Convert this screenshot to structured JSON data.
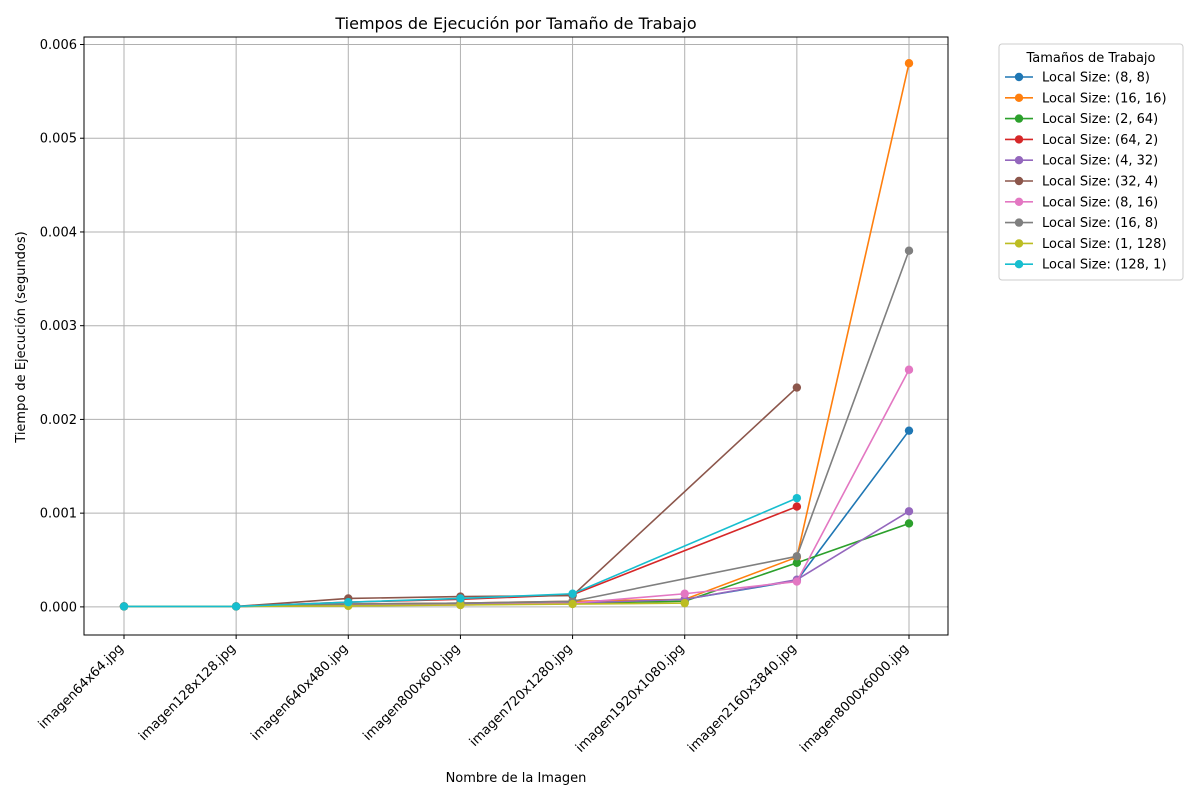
{
  "chart_data": {
    "type": "line",
    "title": "Tiempos de Ejecución por Tamaño de Trabajo",
    "xlabel": "Nombre de la Imagen",
    "ylabel": "Tiempo de Ejecución (segundos)",
    "categories": [
      "imagen64x64.jpg",
      "imagen128x128.jpg",
      "imagen640x480.jpg",
      "imagen800x600.jpg",
      "imagen720x1280.jpg",
      "imagen1920x1080.jpg",
      "imagen2160x3840.jpg",
      "imagen8000x6000.jpg"
    ],
    "ylim": [
      -0.0003,
      0.00608
    ],
    "yticks": [
      0.0,
      0.001,
      0.002,
      0.003,
      0.004,
      0.005,
      0.006
    ],
    "ytick_labels": [
      "0.000",
      "0.001",
      "0.002",
      "0.003",
      "0.004",
      "0.005",
      "0.006"
    ],
    "grid": true,
    "legend": {
      "title": "Tamaños de Trabajo",
      "placement": "outside-top-right"
    },
    "series": [
      {
        "name": "Local Size: (8, 8)",
        "color": "#1f77b4",
        "values": [
          5e-06,
          5e-06,
          3e-05,
          4e-05,
          5e-05,
          8e-05,
          0.00028,
          0.00188
        ]
      },
      {
        "name": "Local Size: (16, 16)",
        "color": "#ff7f0e",
        "values": [
          5e-06,
          5e-06,
          3e-05,
          4e-05,
          6e-05,
          8e-05,
          0.00053,
          0.0058
        ]
      },
      {
        "name": "Local Size: (2, 64)",
        "color": "#2ca02c",
        "values": [
          5e-06,
          5e-06,
          2e-05,
          3e-05,
          4e-05,
          6e-05,
          0.00047,
          0.00089
        ]
      },
      {
        "name": "Local Size: (64, 2)",
        "color": "#d62728",
        "values": [
          5e-06,
          5e-06,
          5e-05,
          8e-05,
          0.00013,
          null,
          0.00107,
          null
        ]
      },
      {
        "name": "Local Size: (4, 32)",
        "color": "#9467bd",
        "values": [
          5e-06,
          5e-06,
          2e-05,
          3e-05,
          4e-05,
          8e-05,
          0.00029,
          0.00102
        ]
      },
      {
        "name": "Local Size: (32, 4)",
        "color": "#8c564b",
        "values": [
          5e-06,
          5e-06,
          9e-05,
          0.00011,
          0.00012,
          null,
          0.00234,
          null
        ]
      },
      {
        "name": "Local Size: (8, 16)",
        "color": "#e377c2",
        "values": [
          5e-06,
          5e-06,
          2e-05,
          2e-05,
          4e-05,
          0.00014,
          0.00027,
          0.00253
        ]
      },
      {
        "name": "Local Size: (16, 8)",
        "color": "#7f7f7f",
        "values": [
          5e-06,
          5e-06,
          3e-05,
          4e-05,
          6e-05,
          null,
          0.00054,
          0.0038
        ]
      },
      {
        "name": "Local Size: (1, 128)",
        "color": "#bcbd22",
        "values": [
          5e-06,
          5e-06,
          1e-05,
          2e-05,
          3e-05,
          4e-05,
          null,
          null
        ]
      },
      {
        "name": "Local Size: (128, 1)",
        "color": "#17becf",
        "values": [
          5e-06,
          5e-06,
          5e-05,
          9e-05,
          0.00014,
          null,
          0.00116,
          null
        ]
      }
    ]
  }
}
